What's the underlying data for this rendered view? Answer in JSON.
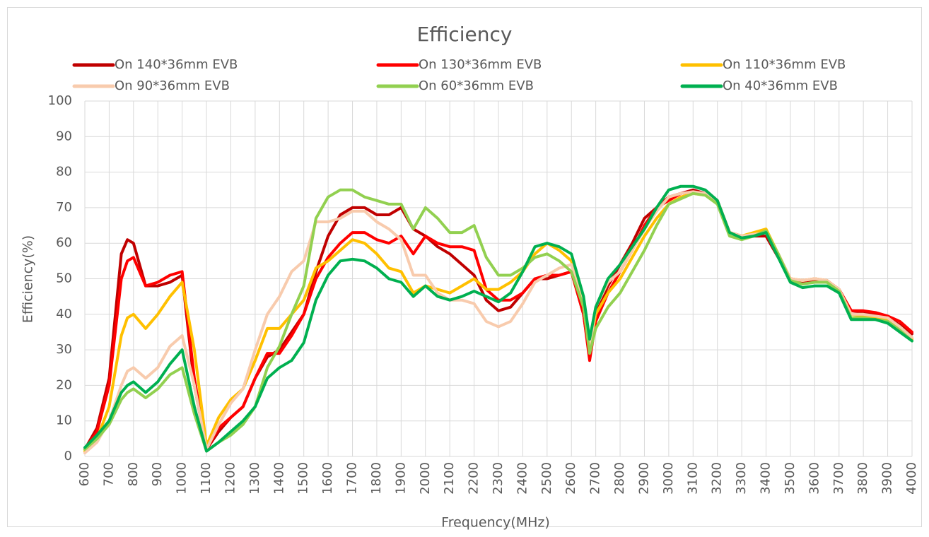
{
  "chart_data": {
    "type": "line",
    "title": "Efficiency",
    "xlabel": "Frequency(MHz)",
    "ylabel": "Efficiency(%)",
    "x": [
      600,
      650,
      700,
      750,
      775,
      800,
      850,
      900,
      950,
      1000,
      1050,
      1100,
      1150,
      1200,
      1250,
      1300,
      1350,
      1400,
      1450,
      1500,
      1550,
      1600,
      1650,
      1700,
      1750,
      1800,
      1850,
      1900,
      1950,
      2000,
      2050,
      2100,
      2150,
      2200,
      2250,
      2300,
      2350,
      2400,
      2450,
      2500,
      2550,
      2600,
      2650,
      2675,
      2700,
      2750,
      2800,
      2850,
      2900,
      2950,
      3000,
      3050,
      3100,
      3150,
      3200,
      3250,
      3300,
      3350,
      3400,
      3450,
      3500,
      3550,
      3600,
      3650,
      3700,
      3750,
      3800,
      3850,
      3900,
      3950,
      4000
    ],
    "series": [
      {
        "name": "On 140*36mm EVB",
        "color": "#C00000",
        "values": [
          2,
          8,
          22,
          57,
          61,
          60,
          48,
          48,
          49,
          51,
          20,
          2,
          7,
          11,
          14,
          22,
          28,
          30,
          35,
          40,
          52,
          62,
          68,
          70,
          70,
          68,
          68,
          70,
          64,
          62,
          59,
          57,
          54,
          51,
          44,
          41,
          42,
          46,
          50,
          50,
          51,
          52,
          40,
          28,
          40,
          48,
          54,
          60,
          67,
          70,
          73,
          74,
          75,
          74,
          72,
          63,
          62,
          62,
          62,
          56,
          50,
          49,
          49.5,
          49.5,
          47,
          41,
          40.5,
          40,
          39,
          37,
          34.5
        ]
      },
      {
        "name": "On 130*36mm EVB",
        "color": "#FF0000",
        "values": [
          2,
          7,
          20,
          50,
          55,
          56,
          48,
          49,
          51,
          52,
          22,
          2,
          8,
          11,
          14,
          22,
          29,
          29,
          34,
          40,
          50,
          56,
          60,
          63,
          63,
          61,
          60,
          62,
          57,
          62,
          60,
          59,
          59,
          58,
          47,
          44,
          44,
          46,
          50,
          51,
          51,
          52,
          40,
          27,
          38,
          46,
          52,
          58,
          65,
          70,
          72,
          74,
          74.5,
          74,
          72,
          63,
          62,
          62.5,
          63,
          57,
          50,
          49.5,
          50,
          49.5,
          47,
          41,
          41,
          40.5,
          39.5,
          38,
          35
        ]
      },
      {
        "name": "On 110*36mm EVB",
        "color": "#FFC000",
        "values": [
          1.5,
          5,
          14,
          34,
          39,
          40,
          36,
          40,
          45,
          49,
          30,
          3,
          11,
          16,
          19,
          27,
          36,
          36,
          40,
          44,
          53,
          55,
          58,
          61,
          60,
          57,
          53,
          52,
          46,
          48,
          47,
          46,
          48,
          50,
          47,
          47,
          49,
          52,
          57,
          60,
          58,
          55,
          42,
          31,
          40,
          46,
          50,
          56,
          62,
          67,
          71,
          73,
          74,
          73.5,
          72,
          63,
          62,
          63,
          64,
          57,
          50,
          49.5,
          50,
          49.5,
          47,
          40,
          39.5,
          39,
          38.5,
          36,
          33
        ]
      },
      {
        "name": "On 90*36mm EVB",
        "color": "#F8CBAD",
        "values": [
          1,
          4,
          10,
          20,
          24,
          25,
          22,
          25,
          31,
          34,
          20,
          2,
          9,
          15,
          19,
          30,
          40,
          45,
          52,
          55,
          66,
          66,
          67,
          69,
          69,
          66,
          64,
          61,
          51,
          51,
          46,
          44,
          44,
          43,
          38,
          36.5,
          38,
          43,
          49,
          51,
          53,
          54,
          42,
          30,
          42,
          49,
          52,
          58,
          64,
          69,
          73,
          74,
          74.5,
          74,
          72,
          63,
          62,
          62.5,
          63,
          57,
          50,
          49.5,
          50,
          49.5,
          47,
          40,
          40,
          39.5,
          39,
          36.5,
          33.5
        ]
      },
      {
        "name": "On 60*36mm EVB",
        "color": "#92D050",
        "values": [
          2,
          5,
          9,
          16,
          18,
          19,
          16.5,
          19,
          23,
          25,
          12,
          1.5,
          4,
          6,
          9,
          14,
          25,
          31,
          40,
          48,
          67,
          73,
          75,
          75,
          73,
          72,
          71,
          71,
          64,
          70,
          67,
          63,
          63,
          65,
          56,
          51,
          51,
          53,
          56,
          57,
          55,
          52,
          42,
          29,
          36,
          42,
          46,
          52,
          58,
          65,
          71,
          72.5,
          74,
          73.5,
          71,
          62,
          61,
          62,
          63.5,
          57,
          49.5,
          48.5,
          49,
          49,
          46.5,
          39,
          39,
          38.5,
          38,
          35.5,
          32.5
        ]
      },
      {
        "name": "On 40*36mm EVB",
        "color": "#00B050",
        "values": [
          2.5,
          6,
          10,
          18,
          20,
          21,
          18,
          21,
          26,
          30,
          14,
          1.5,
          4,
          7,
          10,
          14,
          22,
          25,
          27,
          32,
          44,
          51,
          55,
          55.5,
          55,
          53,
          50,
          49,
          45,
          48,
          45,
          44,
          45,
          46.5,
          45,
          43.5,
          46,
          52,
          59,
          60,
          59,
          57,
          45,
          33,
          42,
          50,
          54,
          59,
          64,
          70,
          75,
          76,
          76,
          75,
          72,
          63,
          61.5,
          62,
          63,
          56,
          49,
          47.5,
          48,
          48,
          46,
          38.5,
          38.5,
          38.5,
          37.5,
          35,
          32.5
        ]
      }
    ],
    "xlim": [
      600,
      4000
    ],
    "xticks": [
      600,
      700,
      800,
      900,
      1000,
      1100,
      1200,
      1300,
      1400,
      1500,
      1600,
      1700,
      1800,
      1900,
      2000,
      2100,
      2200,
      2300,
      2400,
      2500,
      2600,
      2700,
      2800,
      2900,
      3000,
      3100,
      3200,
      3300,
      3400,
      3500,
      3600,
      3700,
      3800,
      3900,
      4000
    ],
    "ylim": [
      0,
      100
    ],
    "yticks": [
      0,
      10,
      20,
      30,
      40,
      50,
      60,
      70,
      80,
      90,
      100
    ],
    "grid": true,
    "legend": "top"
  }
}
